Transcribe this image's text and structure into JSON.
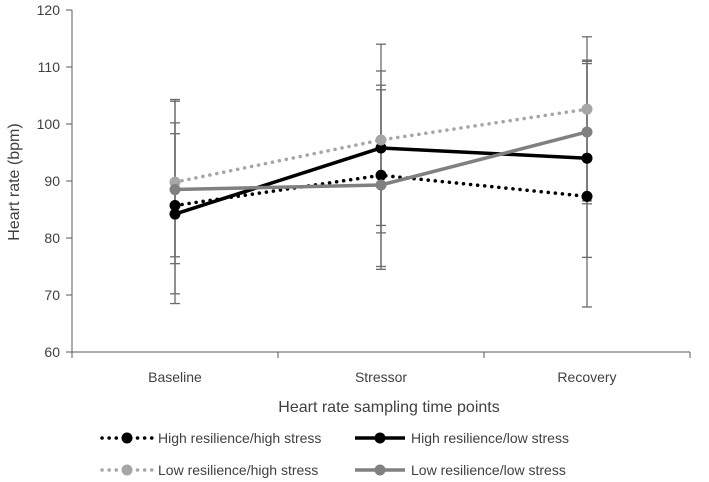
{
  "chart_data": {
    "type": "line",
    "title": "",
    "xlabel": "Heart rate sampling time points",
    "ylabel": "Heart rate (bpm)",
    "ylim": [
      60,
      120
    ],
    "yticks": [
      60,
      70,
      80,
      90,
      100,
      110,
      120
    ],
    "categories": [
      "Baseline",
      "Stressor",
      "Recovery"
    ],
    "grid": false,
    "legend_position": "bottom",
    "series": [
      {
        "name": "High resilience/high stress",
        "color": "#000000",
        "line_style": "dotted",
        "values": [
          85.7,
          91.0,
          87.3
        ],
        "error_low": [
          70.2,
          74.5,
          67.9
        ],
        "error_high": [
          104.0,
          109.3,
          111.0
        ]
      },
      {
        "name": "High resilience/low stress",
        "color": "#000000",
        "line_style": "solid",
        "values": [
          84.2,
          95.8,
          94.0
        ],
        "error_low": [
          68.5,
          75.0,
          76.6
        ],
        "error_high": [
          98.3,
          114.0,
          111.2
        ]
      },
      {
        "name": "Low resilience/high stress",
        "color": "#a6a6a6",
        "line_style": "dotted",
        "values": [
          89.8,
          97.2,
          102.6
        ],
        "error_low": [
          75.5,
          82.2,
          86.0
        ],
        "error_high": [
          104.3,
          106.8,
          115.3
        ]
      },
      {
        "name": "Low resilience/low stress",
        "color": "#808080",
        "line_style": "solid",
        "values": [
          88.5,
          89.3,
          98.6
        ],
        "error_low": [
          76.7,
          80.9,
          86.5
        ],
        "error_high": [
          100.2,
          106.0,
          110.6
        ]
      }
    ]
  }
}
